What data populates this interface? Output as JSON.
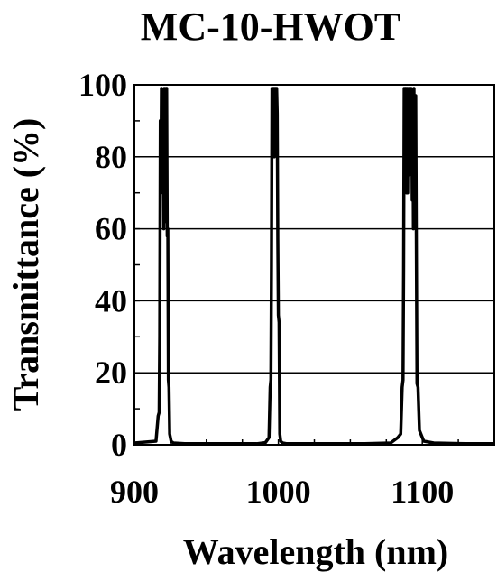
{
  "chart_data": {
    "type": "line",
    "title": "MC-10-HWOT",
    "xlabel": "Wavelength (nm)",
    "ylabel": "Transmittance (%)",
    "xlim": [
      900,
      1150
    ],
    "ylim": [
      0,
      100
    ],
    "x_ticks": [
      900,
      1000,
      1100
    ],
    "y_ticks": [
      0,
      20,
      40,
      60,
      80,
      100
    ],
    "grid": "horizontal",
    "series": [
      {
        "x": [
          900,
          915,
          916.5,
          917.2,
          917.6,
          918,
          918.4,
          918.8,
          919.2,
          919.6,
          920,
          920.4,
          920.8,
          921.2,
          921.6,
          922,
          922.4,
          922.8,
          923.2,
          923.6,
          924,
          924.5,
          925.5,
          927,
          935,
          960,
          985,
          991,
          993.5,
          994.3,
          994.8,
          995.2,
          995.6,
          996,
          996.4,
          996.8,
          997.2,
          997.6,
          998,
          998.4,
          998.8,
          999.2,
          999.6,
          1000,
          1000.5,
          1001,
          1001.6,
          1003,
          1006,
          1020,
          1060,
          1078,
          1083,
          1085,
          1086,
          1086.6,
          1087,
          1087.4,
          1087.8,
          1088.2,
          1088.6,
          1089,
          1089.4,
          1089.8,
          1090.2,
          1090.6,
          1091,
          1091.4,
          1091.8,
          1092.2,
          1092.6,
          1093,
          1093.4,
          1093.8,
          1094.2,
          1094.6,
          1095,
          1095.4,
          1095.8,
          1096.3,
          1097,
          1098,
          1101,
          1108,
          1130,
          1150
        ],
        "y": [
          0.5,
          1,
          8,
          9,
          30,
          90,
          70,
          99,
          72,
          92,
          98,
          60,
          99,
          62,
          95,
          99,
          99,
          58,
          60,
          18,
          16,
          3,
          1,
          0.5,
          0.3,
          0.3,
          0.3,
          0.6,
          2,
          16,
          18,
          50,
          99,
          92,
          99,
          99,
          80,
          99,
          99,
          82,
          99,
          92,
          57,
          36,
          34,
          3,
          1,
          0.5,
          0.3,
          0.3,
          0.3,
          0.5,
          2,
          3,
          16,
          18,
          48,
          99,
          75,
          99,
          99,
          70,
          99,
          70,
          98,
          99,
          75,
          92,
          95,
          99,
          96,
          68,
          98,
          60,
          99,
          70,
          68,
          97,
          60,
          17,
          16,
          4,
          1,
          0.5,
          0.3,
          0.3
        ]
      }
    ]
  }
}
